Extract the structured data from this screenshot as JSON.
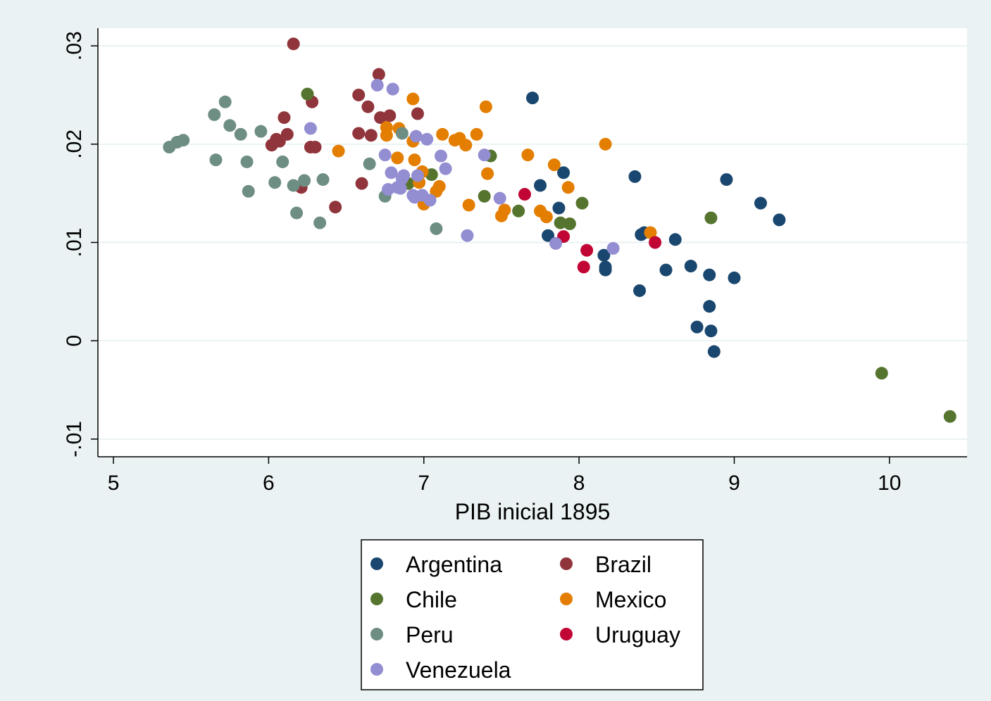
{
  "chart_data": {
    "type": "scatter",
    "xlabel": "PIB inicial 1895",
    "ylabel": "",
    "xlim": [
      4.9,
      10.5
    ],
    "ylim": [
      -0.0118,
      0.0318
    ],
    "x_ticks": [
      "5",
      "6",
      "7",
      "8",
      "9",
      "10"
    ],
    "x_tick_values": [
      5,
      6,
      7,
      8,
      9,
      10
    ],
    "y_ticks": [
      "-.01",
      "0",
      ".01",
      ".02",
      ".03"
    ],
    "y_tick_values": [
      -0.01,
      0,
      0.01,
      0.02,
      0.03
    ],
    "grid": "horizontal",
    "legend_position": "bottom",
    "colors": {
      "plot_background": "#ffffff",
      "outer_background": "#eaf2f3",
      "gridline": "#eaf2f3"
    },
    "series": [
      {
        "name": "Argentina",
        "color": "#1a476f",
        "points": [
          [
            7.7,
            0.0247
          ],
          [
            7.75,
            0.0158
          ],
          [
            7.8,
            0.0107
          ],
          [
            7.87,
            0.0135
          ],
          [
            7.9,
            0.0171
          ],
          [
            8.16,
            0.0087
          ],
          [
            8.17,
            0.0072
          ],
          [
            8.17,
            0.0075
          ],
          [
            8.36,
            0.0167
          ],
          [
            8.39,
            0.0051
          ],
          [
            8.4,
            0.0108
          ],
          [
            8.42,
            0.011
          ],
          [
            8.56,
            0.0072
          ],
          [
            8.62,
            0.0103
          ],
          [
            8.72,
            0.0076
          ],
          [
            8.76,
            0.0014
          ],
          [
            8.84,
            0.0067
          ],
          [
            8.84,
            0.0035
          ],
          [
            8.85,
            0.001
          ],
          [
            8.87,
            -0.0011
          ],
          [
            8.95,
            0.0164
          ],
          [
            9.0,
            0.0064
          ],
          [
            9.17,
            0.014
          ],
          [
            9.29,
            0.0123
          ]
        ]
      },
      {
        "name": "Brazil",
        "color": "#90353b",
        "points": [
          [
            6.02,
            0.0199
          ],
          [
            6.05,
            0.0205
          ],
          [
            6.07,
            0.0203
          ],
          [
            6.1,
            0.0227
          ],
          [
            6.12,
            0.021
          ],
          [
            6.16,
            0.0302
          ],
          [
            6.21,
            0.0156
          ],
          [
            6.27,
            0.0197
          ],
          [
            6.28,
            0.0243
          ],
          [
            6.3,
            0.0197
          ],
          [
            6.43,
            0.0136
          ],
          [
            6.58,
            0.0211
          ],
          [
            6.58,
            0.025
          ],
          [
            6.6,
            0.016
          ],
          [
            6.64,
            0.0238
          ],
          [
            6.66,
            0.0209
          ],
          [
            6.71,
            0.0271
          ],
          [
            6.72,
            0.0227
          ],
          [
            6.78,
            0.0229
          ],
          [
            6.96,
            0.0231
          ]
        ]
      },
      {
        "name": "Chile",
        "color": "#55752f",
        "points": [
          [
            6.25,
            0.0251
          ],
          [
            6.9,
            0.016
          ],
          [
            7.05,
            0.0169
          ],
          [
            7.39,
            0.0147
          ],
          [
            7.43,
            0.0188
          ],
          [
            7.61,
            0.0132
          ],
          [
            7.88,
            0.012
          ],
          [
            7.94,
            0.0119
          ],
          [
            8.02,
            0.014
          ],
          [
            8.85,
            0.0125
          ],
          [
            9.95,
            -0.0033
          ],
          [
            10.39,
            -0.0077
          ]
        ]
      },
      {
        "name": "Mexico",
        "color": "#e37e00",
        "points": [
          [
            6.45,
            0.0193
          ],
          [
            6.76,
            0.0217
          ],
          [
            6.76,
            0.0209
          ],
          [
            6.83,
            0.0186
          ],
          [
            6.84,
            0.0216
          ],
          [
            6.93,
            0.0203
          ],
          [
            6.93,
            0.0246
          ],
          [
            6.94,
            0.0184
          ],
          [
            6.97,
            0.0161
          ],
          [
            6.99,
            0.0172
          ],
          [
            7.0,
            0.0139
          ],
          [
            7.08,
            0.0152
          ],
          [
            7.1,
            0.0157
          ],
          [
            7.12,
            0.021
          ],
          [
            7.2,
            0.0204
          ],
          [
            7.23,
            0.0206
          ],
          [
            7.27,
            0.0199
          ],
          [
            7.29,
            0.0138
          ],
          [
            7.34,
            0.021
          ],
          [
            7.4,
            0.0238
          ],
          [
            7.41,
            0.017
          ],
          [
            7.5,
            0.0127
          ],
          [
            7.52,
            0.0133
          ],
          [
            7.67,
            0.0189
          ],
          [
            7.75,
            0.0132
          ],
          [
            7.79,
            0.0126
          ],
          [
            7.84,
            0.0179
          ],
          [
            7.93,
            0.0156
          ],
          [
            8.17,
            0.02
          ],
          [
            8.46,
            0.011
          ]
        ]
      },
      {
        "name": "Peru",
        "color": "#6e8e84",
        "points": [
          [
            5.36,
            0.0197
          ],
          [
            5.41,
            0.0202
          ],
          [
            5.45,
            0.0204
          ],
          [
            5.65,
            0.023
          ],
          [
            5.66,
            0.0184
          ],
          [
            5.72,
            0.0243
          ],
          [
            5.75,
            0.0219
          ],
          [
            5.82,
            0.021
          ],
          [
            5.86,
            0.0182
          ],
          [
            5.87,
            0.0152
          ],
          [
            5.95,
            0.0213
          ],
          [
            6.04,
            0.0161
          ],
          [
            6.09,
            0.0182
          ],
          [
            6.16,
            0.0158
          ],
          [
            6.18,
            0.013
          ],
          [
            6.23,
            0.0163
          ],
          [
            6.33,
            0.012
          ],
          [
            6.35,
            0.0164
          ],
          [
            6.65,
            0.018
          ],
          [
            6.75,
            0.0147
          ],
          [
            6.86,
            0.0211
          ],
          [
            7.08,
            0.0114
          ]
        ]
      },
      {
        "name": "Uruguay",
        "color": "#c10534",
        "points": [
          [
            7.65,
            0.0149
          ],
          [
            7.9,
            0.0106
          ],
          [
            8.03,
            0.0075
          ],
          [
            8.05,
            0.0092
          ],
          [
            8.49,
            0.01
          ]
        ]
      },
      {
        "name": "Venezuela",
        "color": "#938dd2",
        "points": [
          [
            6.27,
            0.0216
          ],
          [
            6.7,
            0.026
          ],
          [
            6.75,
            0.0189
          ],
          [
            6.77,
            0.0154
          ],
          [
            6.79,
            0.0171
          ],
          [
            6.8,
            0.0256
          ],
          [
            6.83,
            0.0156
          ],
          [
            6.85,
            0.0155
          ],
          [
            6.86,
            0.0165
          ],
          [
            6.87,
            0.0168
          ],
          [
            6.93,
            0.0148
          ],
          [
            6.94,
            0.0146
          ],
          [
            6.95,
            0.0208
          ],
          [
            6.96,
            0.0168
          ],
          [
            6.99,
            0.0148
          ],
          [
            7.02,
            0.0205
          ],
          [
            7.04,
            0.0143
          ],
          [
            7.11,
            0.0188
          ],
          [
            7.14,
            0.0175
          ],
          [
            7.28,
            0.0107
          ],
          [
            7.39,
            0.0189
          ],
          [
            7.49,
            0.0145
          ],
          [
            7.85,
            0.0099
          ],
          [
            8.22,
            0.0094
          ]
        ]
      }
    ],
    "legend": [
      {
        "name": "Argentina",
        "color": "#1a476f"
      },
      {
        "name": "Brazil",
        "color": "#90353b"
      },
      {
        "name": "Chile",
        "color": "#55752f"
      },
      {
        "name": "Mexico",
        "color": "#e37e00"
      },
      {
        "name": "Peru",
        "color": "#6e8e84"
      },
      {
        "name": "Uruguay",
        "color": "#c10534"
      },
      {
        "name": "Venezuela",
        "color": "#938dd2"
      }
    ]
  }
}
